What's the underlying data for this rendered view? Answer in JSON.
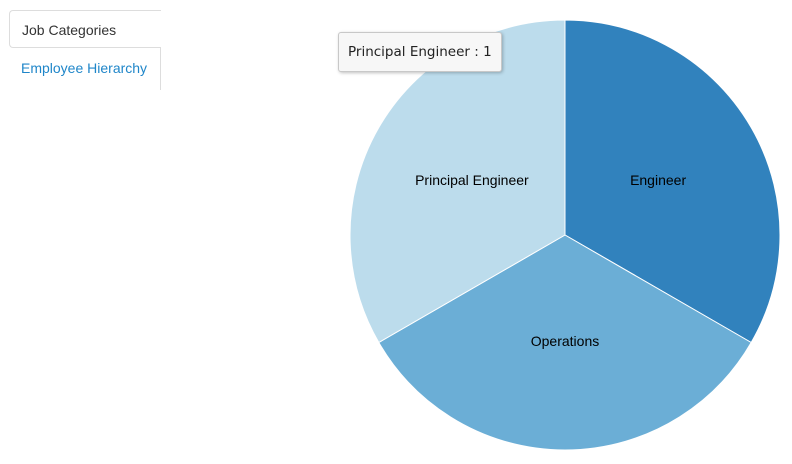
{
  "tabs": [
    {
      "label": "Job Categories",
      "active": true
    },
    {
      "label": "Employee Hierarchy",
      "active": false
    }
  ],
  "tooltip": {
    "category": "Principal Engineer",
    "separator": " : ",
    "value": "1"
  },
  "chart_data": {
    "type": "pie",
    "categories": [
      "Engineer",
      "Operations",
      "Principal Engineer"
    ],
    "values": [
      1,
      1,
      1
    ],
    "colors": [
      "#3182bd",
      "#6baed6",
      "#bcdcec"
    ],
    "title": "",
    "legend": "none"
  }
}
